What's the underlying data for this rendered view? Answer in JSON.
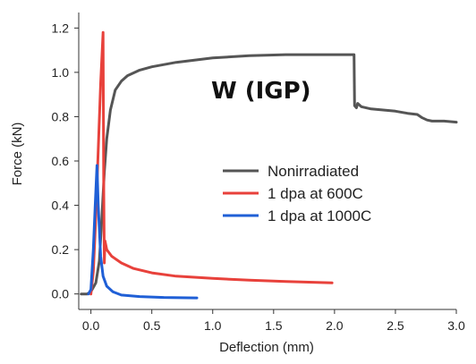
{
  "chart_data": {
    "type": "line",
    "title": "",
    "annotation": "W (IGP)",
    "xlabel": "Deflection (mm)",
    "ylabel": "Force (kN)",
    "xlim": [
      -0.1,
      3.0
    ],
    "ylim": [
      -0.07,
      1.27
    ],
    "x_ticks": [
      0.0,
      0.5,
      1.0,
      1.5,
      2.0,
      2.5,
      3.0
    ],
    "x_tick_labels": [
      "0.0",
      "0.5",
      "1.0",
      "1.5",
      "2.0",
      "2.5",
      "3.0"
    ],
    "y_ticks": [
      0.0,
      0.2,
      0.4,
      0.6,
      0.8,
      1.0,
      1.2
    ],
    "y_tick_labels": [
      "0.0",
      "0.2",
      "0.4",
      "0.6",
      "0.8",
      "1.0",
      "1.2"
    ],
    "grid": false,
    "legend_position": "center-right",
    "series": [
      {
        "name": "Nonirradiated",
        "color": "#555555",
        "points": [
          [
            -0.08,
            0.0
          ],
          [
            -0.03,
            0.0
          ],
          [
            0.0,
            0.01
          ],
          [
            0.04,
            0.05
          ],
          [
            0.07,
            0.15
          ],
          [
            0.09,
            0.35
          ],
          [
            0.11,
            0.55
          ],
          [
            0.13,
            0.7
          ],
          [
            0.16,
            0.83
          ],
          [
            0.2,
            0.92
          ],
          [
            0.25,
            0.96
          ],
          [
            0.3,
            0.985
          ],
          [
            0.4,
            1.01
          ],
          [
            0.5,
            1.025
          ],
          [
            0.7,
            1.045
          ],
          [
            1.0,
            1.065
          ],
          [
            1.3,
            1.075
          ],
          [
            1.6,
            1.08
          ],
          [
            1.9,
            1.08
          ],
          [
            2.16,
            1.08
          ],
          [
            2.165,
            0.85
          ],
          [
            2.18,
            0.84
          ],
          [
            2.19,
            0.86
          ],
          [
            2.22,
            0.845
          ],
          [
            2.3,
            0.835
          ],
          [
            2.4,
            0.83
          ],
          [
            2.5,
            0.825
          ],
          [
            2.6,
            0.815
          ],
          [
            2.68,
            0.81
          ],
          [
            2.72,
            0.795
          ],
          [
            2.76,
            0.785
          ],
          [
            2.8,
            0.78
          ],
          [
            2.9,
            0.78
          ],
          [
            3.0,
            0.775
          ]
        ]
      },
      {
        "name": "1 dpa at 600C",
        "color": "#e8413b",
        "points": [
          [
            0.0,
            0.0
          ],
          [
            0.02,
            0.1
          ],
          [
            0.04,
            0.35
          ],
          [
            0.06,
            0.65
          ],
          [
            0.08,
            0.95
          ],
          [
            0.1,
            1.18
          ],
          [
            0.105,
            0.5
          ],
          [
            0.11,
            0.14
          ],
          [
            0.115,
            0.24
          ],
          [
            0.13,
            0.2
          ],
          [
            0.17,
            0.17
          ],
          [
            0.25,
            0.14
          ],
          [
            0.35,
            0.115
          ],
          [
            0.5,
            0.095
          ],
          [
            0.7,
            0.08
          ],
          [
            1.0,
            0.07
          ],
          [
            1.3,
            0.062
          ],
          [
            1.6,
            0.056
          ],
          [
            1.98,
            0.05
          ]
        ]
      },
      {
        "name": "1 dpa at 1000C",
        "color": "#1f5fd6",
        "points": [
          [
            -0.02,
            0.0
          ],
          [
            0.0,
            0.02
          ],
          [
            0.02,
            0.2
          ],
          [
            0.035,
            0.4
          ],
          [
            0.05,
            0.58
          ],
          [
            0.06,
            0.4
          ],
          [
            0.08,
            0.17
          ],
          [
            0.1,
            0.08
          ],
          [
            0.13,
            0.035
          ],
          [
            0.18,
            0.01
          ],
          [
            0.25,
            -0.005
          ],
          [
            0.4,
            -0.012
          ],
          [
            0.6,
            -0.016
          ],
          [
            0.87,
            -0.018
          ]
        ]
      }
    ]
  }
}
